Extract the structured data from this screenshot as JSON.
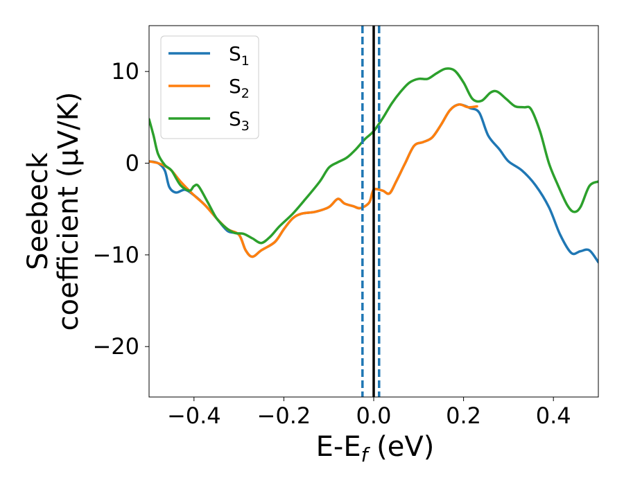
{
  "chart_data": {
    "type": "line",
    "xlabel": {
      "main": "E-E",
      "sub": "f",
      "suffix": " (eV)"
    },
    "ylabel": {
      "line1": "Seebeck",
      "line2": "coefficient  (μV/K)"
    },
    "xlim": [
      -0.5,
      0.5
    ],
    "ylim": [
      -25.5,
      15
    ],
    "xticks": [
      {
        "v": -0.4,
        "label": "−0.4"
      },
      {
        "v": -0.2,
        "label": "−0.2"
      },
      {
        "v": 0.0,
        "label": "0.0"
      },
      {
        "v": 0.2,
        "label": "0.2"
      },
      {
        "v": 0.4,
        "label": "0.4"
      }
    ],
    "yticks": [
      {
        "v": -20,
        "label": "−20"
      },
      {
        "v": -10,
        "label": "−10"
      },
      {
        "v": 0,
        "label": "0"
      },
      {
        "v": 10,
        "label": "10"
      }
    ],
    "legend_position": "upper-left",
    "grid": false,
    "vlines": [
      {
        "x": 0.0,
        "style": "solid",
        "color": "#000000"
      },
      {
        "x": -0.025,
        "style": "dashed",
        "color": "#1f77b4"
      },
      {
        "x": 0.012,
        "style": "dashed",
        "color": "#1f77b4"
      }
    ],
    "series": [
      {
        "name": "S",
        "sub": "1",
        "color": "#1f77b4",
        "points": [
          [
            -0.5,
            0.2
          ],
          [
            -0.48,
            0.0
          ],
          [
            -0.465,
            -0.8
          ],
          [
            -0.455,
            -2.6
          ],
          [
            -0.44,
            -3.2
          ],
          [
            -0.42,
            -2.9
          ],
          [
            -0.4,
            -3.5
          ],
          [
            -0.375,
            -4.6
          ],
          [
            -0.35,
            -6.0
          ],
          [
            -0.325,
            -7.4
          ],
          [
            -0.3,
            -7.8
          ],
          [
            -0.285,
            -9.5
          ],
          [
            -0.27,
            -10.2
          ],
          [
            -0.25,
            -9.5
          ],
          [
            -0.22,
            -8.6
          ],
          [
            -0.2,
            -7.2
          ],
          [
            -0.18,
            -6.0
          ],
          [
            -0.16,
            -5.5
          ],
          [
            -0.13,
            -5.3
          ],
          [
            -0.1,
            -4.8
          ],
          [
            -0.08,
            -3.9
          ],
          [
            -0.065,
            -4.4
          ],
          [
            -0.045,
            -4.7
          ],
          [
            -0.03,
            -4.9
          ],
          [
            -0.01,
            -4.3
          ],
          [
            0.0,
            -2.9
          ],
          [
            0.02,
            -3.0
          ],
          [
            0.035,
            -3.3
          ],
          [
            0.05,
            -2.0
          ],
          [
            0.07,
            0.0
          ],
          [
            0.09,
            1.9
          ],
          [
            0.11,
            2.3
          ],
          [
            0.13,
            2.8
          ],
          [
            0.15,
            4.2
          ],
          [
            0.17,
            5.8
          ],
          [
            0.19,
            6.4
          ],
          [
            0.215,
            6.0
          ],
          [
            0.235,
            5.5
          ],
          [
            0.255,
            3.0
          ],
          [
            0.28,
            1.5
          ],
          [
            0.3,
            0.2
          ],
          [
            0.33,
            -0.8
          ],
          [
            0.36,
            -2.4
          ],
          [
            0.39,
            -4.8
          ],
          [
            0.415,
            -7.8
          ],
          [
            0.44,
            -9.8
          ],
          [
            0.46,
            -9.6
          ],
          [
            0.48,
            -9.5
          ],
          [
            0.5,
            -10.8
          ]
        ]
      },
      {
        "name": "S",
        "sub": "2",
        "color": "#ff7f0e",
        "points": [
          [
            -0.5,
            0.2
          ],
          [
            -0.48,
            0.0
          ],
          [
            -0.465,
            -0.3
          ],
          [
            -0.45,
            -0.8
          ],
          [
            -0.43,
            -2.0
          ],
          [
            -0.4,
            -3.5
          ],
          [
            -0.375,
            -4.6
          ],
          [
            -0.35,
            -6.0
          ],
          [
            -0.325,
            -7.2
          ],
          [
            -0.3,
            -7.8
          ],
          [
            -0.285,
            -9.5
          ],
          [
            -0.27,
            -10.2
          ],
          [
            -0.25,
            -9.5
          ],
          [
            -0.22,
            -8.6
          ],
          [
            -0.2,
            -7.2
          ],
          [
            -0.18,
            -6.0
          ],
          [
            -0.16,
            -5.5
          ],
          [
            -0.13,
            -5.3
          ],
          [
            -0.1,
            -4.8
          ],
          [
            -0.08,
            -3.9
          ],
          [
            -0.065,
            -4.4
          ],
          [
            -0.045,
            -4.7
          ],
          [
            -0.03,
            -4.9
          ],
          [
            -0.01,
            -4.3
          ],
          [
            0.0,
            -2.9
          ],
          [
            0.02,
            -3.0
          ],
          [
            0.035,
            -3.3
          ],
          [
            0.05,
            -2.0
          ],
          [
            0.07,
            0.0
          ],
          [
            0.09,
            1.9
          ],
          [
            0.11,
            2.3
          ],
          [
            0.13,
            2.8
          ],
          [
            0.15,
            4.2
          ],
          [
            0.17,
            5.8
          ],
          [
            0.19,
            6.4
          ],
          [
            0.21,
            6.1
          ],
          [
            0.23,
            6.2
          ]
        ]
      },
      {
        "name": "S",
        "sub": "3",
        "color": "#2ca02c",
        "points": [
          [
            -0.5,
            4.8
          ],
          [
            -0.49,
            3.0
          ],
          [
            -0.48,
            1.0
          ],
          [
            -0.465,
            -0.2
          ],
          [
            -0.45,
            -0.8
          ],
          [
            -0.43,
            -2.4
          ],
          [
            -0.41,
            -3.0
          ],
          [
            -0.4,
            -2.5
          ],
          [
            -0.39,
            -2.5
          ],
          [
            -0.37,
            -4.2
          ],
          [
            -0.35,
            -6.0
          ],
          [
            -0.33,
            -7.0
          ],
          [
            -0.31,
            -7.6
          ],
          [
            -0.29,
            -7.7
          ],
          [
            -0.27,
            -8.2
          ],
          [
            -0.25,
            -8.7
          ],
          [
            -0.23,
            -8.0
          ],
          [
            -0.21,
            -6.9
          ],
          [
            -0.18,
            -5.5
          ],
          [
            -0.15,
            -3.8
          ],
          [
            -0.12,
            -2.0
          ],
          [
            -0.1,
            -0.5
          ],
          [
            -0.08,
            0.1
          ],
          [
            -0.06,
            0.6
          ],
          [
            -0.04,
            1.5
          ],
          [
            -0.02,
            2.6
          ],
          [
            0.0,
            3.5
          ],
          [
            0.02,
            4.9
          ],
          [
            0.04,
            6.5
          ],
          [
            0.06,
            7.8
          ],
          [
            0.08,
            8.8
          ],
          [
            0.1,
            9.2
          ],
          [
            0.12,
            9.2
          ],
          [
            0.14,
            9.8
          ],
          [
            0.16,
            10.3
          ],
          [
            0.18,
            10.1
          ],
          [
            0.2,
            8.8
          ],
          [
            0.22,
            7.0
          ],
          [
            0.24,
            6.8
          ],
          [
            0.26,
            7.7
          ],
          [
            0.275,
            7.8
          ],
          [
            0.295,
            7.0
          ],
          [
            0.315,
            6.2
          ],
          [
            0.335,
            6.1
          ],
          [
            0.35,
            5.9
          ],
          [
            0.37,
            3.5
          ],
          [
            0.39,
            0.0
          ],
          [
            0.41,
            -2.4
          ],
          [
            0.43,
            -4.5
          ],
          [
            0.445,
            -5.3
          ],
          [
            0.46,
            -4.8
          ],
          [
            0.48,
            -2.5
          ],
          [
            0.5,
            -2.0
          ]
        ]
      }
    ]
  }
}
